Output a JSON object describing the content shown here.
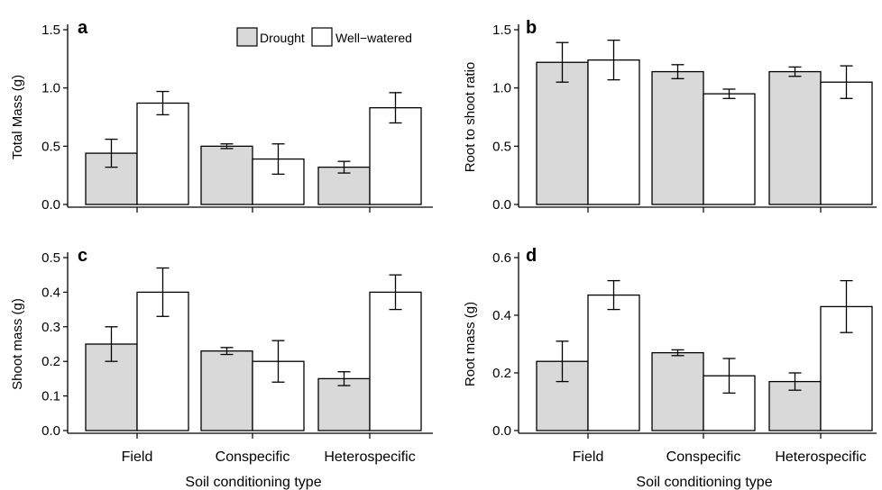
{
  "figure": {
    "xlabel": "Soil conditioning type",
    "legend": {
      "position": "top-right",
      "entries": [
        "Drought",
        "Well−watered"
      ]
    },
    "colors": {
      "drought": "#d9d9d9",
      "well_watered": "#ffffff",
      "stroke": "#000000"
    }
  },
  "chart_data": [
    {
      "panel": "a",
      "type": "bar",
      "categories": [
        "Field",
        "Conspecific",
        "Heterospecific"
      ],
      "ylabel": "Total Mass (g)",
      "ylim": [
        0,
        1.5
      ],
      "yticks": [
        "0.0",
        "0.5",
        "1.0",
        "1.5"
      ],
      "show_xticklabels": false,
      "show_xlabel": false,
      "legend": true,
      "series": [
        {
          "name": "Drought",
          "values": [
            0.44,
            0.5,
            0.32
          ],
          "errors": [
            0.12,
            0.02,
            0.05
          ]
        },
        {
          "name": "Well−watered",
          "values": [
            0.87,
            0.39,
            0.83
          ],
          "errors": [
            0.1,
            0.13,
            0.13
          ]
        }
      ]
    },
    {
      "panel": "b",
      "type": "bar",
      "categories": [
        "Field",
        "Conspecific",
        "Heterospecific"
      ],
      "ylabel": "Root to shoot ratio",
      "ylim": [
        0,
        1.5
      ],
      "yticks": [
        "0.0",
        "0.5",
        "1.0",
        "1.5"
      ],
      "show_xticklabels": false,
      "show_xlabel": false,
      "legend": false,
      "series": [
        {
          "name": "Drought",
          "values": [
            1.22,
            1.14,
            1.14
          ],
          "errors": [
            0.17,
            0.06,
            0.04
          ]
        },
        {
          "name": "Well−watered",
          "values": [
            1.24,
            0.95,
            1.05
          ],
          "errors": [
            0.17,
            0.04,
            0.14
          ]
        }
      ]
    },
    {
      "panel": "c",
      "type": "bar",
      "categories": [
        "Field",
        "Conspecific",
        "Heterospecific"
      ],
      "ylabel": "Shoot mass (g)",
      "ylim": [
        0,
        0.5
      ],
      "yticks": [
        "0.0",
        "0.1",
        "0.2",
        "0.3",
        "0.4",
        "0.5"
      ],
      "show_xticklabels": true,
      "show_xlabel": true,
      "legend": false,
      "series": [
        {
          "name": "Drought",
          "values": [
            0.25,
            0.23,
            0.15
          ],
          "errors": [
            0.05,
            0.01,
            0.02
          ]
        },
        {
          "name": "Well−watered",
          "values": [
            0.4,
            0.2,
            0.4
          ],
          "errors": [
            0.07,
            0.06,
            0.05
          ]
        }
      ]
    },
    {
      "panel": "d",
      "type": "bar",
      "categories": [
        "Field",
        "Conspecific",
        "Heterospecific"
      ],
      "ylabel": "Root mass (g)",
      "ylim": [
        0,
        0.6
      ],
      "yticks": [
        "0.0",
        "0.2",
        "0.4",
        "0.6"
      ],
      "show_xticklabels": true,
      "show_xlabel": true,
      "legend": false,
      "series": [
        {
          "name": "Drought",
          "values": [
            0.24,
            0.27,
            0.17
          ],
          "errors": [
            0.07,
            0.01,
            0.03
          ]
        },
        {
          "name": "Well−watered",
          "values": [
            0.47,
            0.19,
            0.43
          ],
          "errors": [
            0.05,
            0.06,
            0.09
          ]
        }
      ]
    }
  ]
}
